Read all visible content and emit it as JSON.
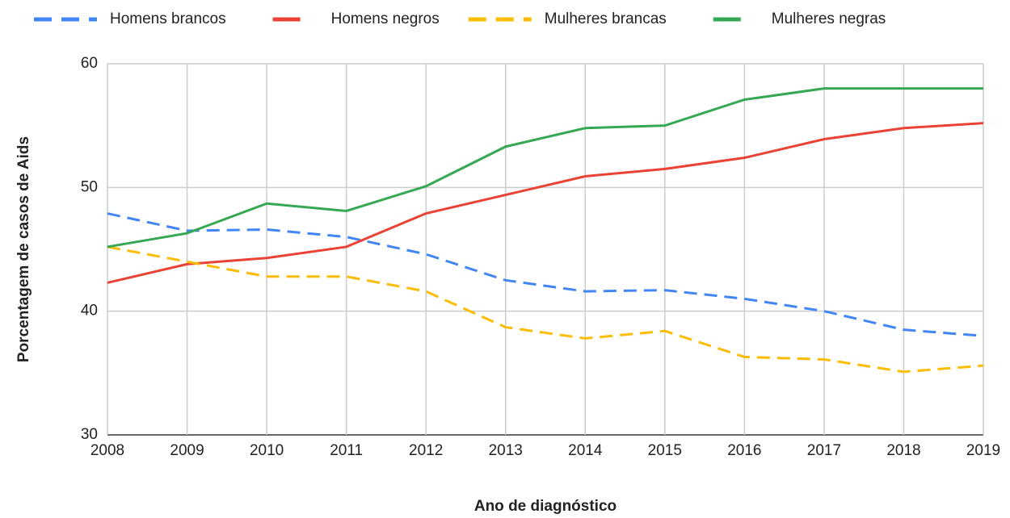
{
  "chart_data": {
    "type": "line",
    "x": [
      2008,
      2009,
      2010,
      2011,
      2012,
      2013,
      2014,
      2015,
      2016,
      2017,
      2018,
      2019
    ],
    "xlim": [
      2008,
      2019
    ],
    "xticks": [
      2008,
      2009,
      2010,
      2011,
      2012,
      2013,
      2014,
      2015,
      2016,
      2017,
      2018,
      2019
    ],
    "ylim": [
      30,
      60
    ],
    "yticks": [
      30,
      40,
      50,
      60
    ],
    "grid": true,
    "legend": "top",
    "x_label": "Ano de diagnóstico",
    "y_label": "Porcentagem de casos de Aids",
    "series": [
      {
        "name": "Homens brancos",
        "color": "#4285f4",
        "dashed": true,
        "values": [
          47.9,
          46.5,
          46.6,
          46.0,
          44.6,
          42.5,
          41.6,
          41.7,
          41.0,
          40.0,
          38.5,
          38.0
        ]
      },
      {
        "name": "Homens negros",
        "color": "#ea4335",
        "dashed": false,
        "values": [
          42.3,
          43.8,
          44.3,
          45.2,
          47.9,
          49.4,
          50.9,
          51.5,
          52.4,
          53.9,
          54.8,
          55.2
        ]
      },
      {
        "name": "Mulheres brancas",
        "color": "#fbbc04",
        "dashed": true,
        "values": [
          45.2,
          44.0,
          42.8,
          42.8,
          41.6,
          38.7,
          37.8,
          38.4,
          36.3,
          36.1,
          35.1,
          35.6
        ]
      },
      {
        "name": "Mulheres negras",
        "color": "#34a853",
        "dashed": false,
        "values": [
          45.2,
          46.3,
          48.7,
          48.1,
          50.1,
          53.3,
          54.8,
          55.0,
          57.1,
          58.0,
          58.0,
          58.0
        ]
      }
    ]
  }
}
